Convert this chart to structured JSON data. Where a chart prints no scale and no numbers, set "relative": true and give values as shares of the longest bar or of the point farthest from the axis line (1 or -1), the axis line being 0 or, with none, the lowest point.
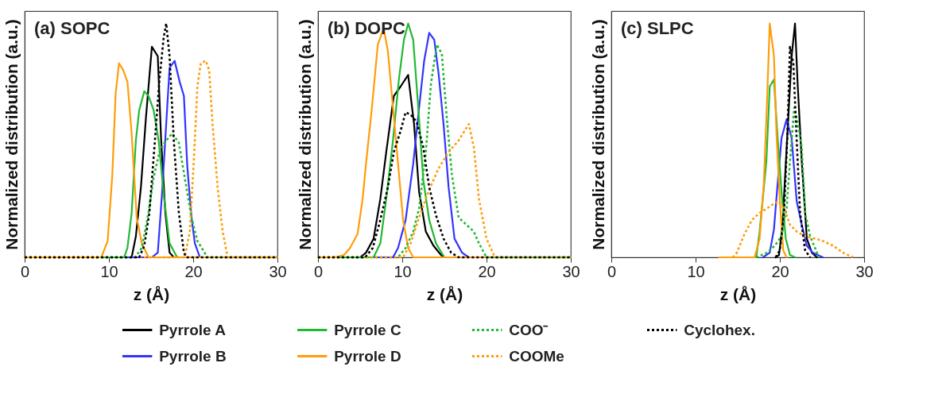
{
  "chart_data": [
    {
      "type": "line",
      "title": "(a) SOPC",
      "xlabel": "z (Å)",
      "ylabel": "Normalized distribution (a.u.)",
      "relative": true,
      "tick_labels": "x",
      "xlim": [
        0,
        30
      ],
      "xticks": [
        0,
        10,
        20,
        30
      ],
      "grid": false,
      "legend": "bottom",
      "series": [
        {
          "name": "Pyrrole A",
          "color": "#000000",
          "line_style": "solid",
          "x": [
            0,
            12.7,
            13.2,
            13.8,
            14.4,
            15.1,
            15.8,
            16.2,
            16.7,
            17.2,
            17.7,
            30
          ],
          "values": [
            0,
            0,
            0.09,
            0.3,
            0.6,
            0.9,
            0.86,
            0.5,
            0.19,
            0.02,
            0,
            0
          ]
        },
        {
          "name": "Pyrrole B",
          "color": "#3333ff",
          "line_style": "solid",
          "x": [
            0,
            15.1,
            15.8,
            16.3,
            16.8,
            17.2,
            17.8,
            18.4,
            18.9,
            19.3,
            19.8,
            20.2,
            20.8,
            30
          ],
          "values": [
            0,
            0,
            0.02,
            0.27,
            0.57,
            0.81,
            0.84,
            0.75,
            0.69,
            0.39,
            0.17,
            0.06,
            0,
            0
          ]
        },
        {
          "name": "Pyrrole C",
          "color": "#22b833",
          "line_style": "solid",
          "x": [
            0,
            11.8,
            12.2,
            12.7,
            13.2,
            13.6,
            14.2,
            14.7,
            15.3,
            15.9,
            16.5,
            17.2,
            18.1,
            30
          ],
          "values": [
            0,
            0,
            0.04,
            0.19,
            0.5,
            0.63,
            0.71,
            0.69,
            0.63,
            0.5,
            0.27,
            0.06,
            0,
            0
          ]
        },
        {
          "name": "Pyrrole D",
          "color": "#ff9d0a",
          "line_style": "solid",
          "x": [
            0,
            9.1,
            9.85,
            10.4,
            10.8,
            11.2,
            11.7,
            12.2,
            12.7,
            13.3,
            13.9,
            14.7,
            30
          ],
          "values": [
            0,
            0,
            0.07,
            0.35,
            0.7,
            0.83,
            0.8,
            0.75,
            0.53,
            0.17,
            0.06,
            0,
            0
          ]
        },
        {
          "name": "COO⁻",
          "color": "#22b833",
          "line_style": "dotted",
          "x": [
            0,
            13.1,
            13.9,
            14.7,
            15.3,
            16.0,
            16.6,
            17.5,
            18.3,
            19.0,
            19.8,
            20.5,
            21.7,
            30
          ],
          "values": [
            0,
            0,
            0.04,
            0.19,
            0.34,
            0.45,
            0.49,
            0.53,
            0.49,
            0.34,
            0.17,
            0.07,
            0,
            0
          ]
        },
        {
          "name": "COOMe",
          "color": "#ff9d0a",
          "line_style": "dotted",
          "x": [
            0,
            19.0,
            19.6,
            20.1,
            20.5,
            20.9,
            21.5,
            21.9,
            22.3,
            22.9,
            23.5,
            24.1,
            30
          ],
          "values": [
            0,
            0,
            0.11,
            0.43,
            0.73,
            0.83,
            0.84,
            0.8,
            0.57,
            0.3,
            0.11,
            0,
            0
          ]
        },
        {
          "name": "Cyclohex.",
          "color": "#000000",
          "line_style": "dotted",
          "x": [
            0,
            13.6,
            14.2,
            14.8,
            15.4,
            16.0,
            16.5,
            16.8,
            17.2,
            17.7,
            18.3,
            18.9,
            19.2,
            30
          ],
          "values": [
            0,
            0,
            0.05,
            0.19,
            0.47,
            0.76,
            0.94,
            1.0,
            0.86,
            0.5,
            0.19,
            0.02,
            0,
            0
          ]
        }
      ]
    },
    {
      "type": "line",
      "title": "(b) DOPC",
      "xlabel": "z (Å)",
      "ylabel": "Normalized distribution (a.u.)",
      "relative": true,
      "tick_labels": "x",
      "xlim": [
        0,
        30
      ],
      "xticks": [
        0,
        10,
        20,
        30
      ],
      "grid": false,
      "series": [
        {
          "color": "#000000",
          "line_style": "solid",
          "x": [
            0,
            5.0,
            5.7,
            6.6,
            7.4,
            8.1,
            9.0,
            9.8,
            10.7,
            11.4,
            12.0,
            12.8,
            13.7,
            14.6,
            15.0,
            30
          ],
          "values": [
            0,
            0,
            0.02,
            0.08,
            0.25,
            0.45,
            0.69,
            0.73,
            0.78,
            0.57,
            0.28,
            0.11,
            0.05,
            0.01,
            0,
            0
          ]
        },
        {
          "color": "#3333ff",
          "line_style": "solid",
          "x": [
            0,
            8.9,
            9.5,
            10.4,
            11.3,
            12.0,
            12.6,
            13.2,
            13.8,
            14.3,
            14.9,
            15.5,
            16.2,
            17.1,
            17.9,
            30
          ],
          "values": [
            0,
            0,
            0.04,
            0.16,
            0.4,
            0.64,
            0.84,
            0.96,
            0.93,
            0.79,
            0.57,
            0.3,
            0.08,
            0.02,
            0,
            0
          ]
        },
        {
          "color": "#22b833",
          "line_style": "solid",
          "x": [
            0,
            6.6,
            7.4,
            8.1,
            8.9,
            9.6,
            10.2,
            10.7,
            11.3,
            11.9,
            12.5,
            13.2,
            14.0,
            15.0,
            30
          ],
          "values": [
            0,
            0,
            0.06,
            0.25,
            0.5,
            0.76,
            0.93,
            1.0,
            0.93,
            0.64,
            0.33,
            0.16,
            0.06,
            0,
            0
          ]
        },
        {
          "color": "#ff9d0a",
          "line_style": "solid",
          "x": [
            0,
            2.0,
            3.1,
            3.8,
            4.7,
            5.3,
            5.7,
            6.4,
            7.1,
            7.8,
            8.3,
            8.9,
            9.5,
            10.1,
            10.7,
            11.3,
            30
          ],
          "values": [
            0,
            0,
            0.01,
            0.04,
            0.1,
            0.25,
            0.4,
            0.64,
            0.91,
            0.98,
            0.88,
            0.64,
            0.4,
            0.16,
            0.04,
            0,
            0
          ]
        },
        {
          "color": "#22b833",
          "line_style": "dotted",
          "x": [
            0,
            9.5,
            10.4,
            11.3,
            12.0,
            12.8,
            13.4,
            14.1,
            14.7,
            15.3,
            15.9,
            16.7,
            17.9,
            18.5,
            19.1,
            20.0,
            30
          ],
          "values": [
            0,
            0,
            0.04,
            0.11,
            0.21,
            0.45,
            0.74,
            0.91,
            0.87,
            0.59,
            0.35,
            0.17,
            0.13,
            0.11,
            0.06,
            0,
            0
          ]
        },
        {
          "color": "#ff9d0a",
          "line_style": "dotted",
          "x": [
            0,
            10.1,
            11.0,
            11.9,
            13.1,
            14.3,
            15.5,
            16.7,
            17.9,
            18.5,
            19.1,
            20.0,
            21.0,
            30
          ],
          "values": [
            0,
            0,
            0.06,
            0.16,
            0.28,
            0.38,
            0.45,
            0.5,
            0.57,
            0.47,
            0.25,
            0.08,
            0,
            0
          ]
        },
        {
          "color": "#000000",
          "line_style": "dotted",
          "x": [
            0,
            5.6,
            6.5,
            7.4,
            8.3,
            9.0,
            9.8,
            10.4,
            11.0,
            11.7,
            12.5,
            13.2,
            14.0,
            14.9,
            15.8,
            16.7,
            30
          ],
          "values": [
            0,
            0,
            0.04,
            0.16,
            0.3,
            0.45,
            0.54,
            0.62,
            0.61,
            0.58,
            0.47,
            0.3,
            0.18,
            0.08,
            0.02,
            0,
            0
          ]
        }
      ]
    },
    {
      "type": "line",
      "title": "(c) SLPC",
      "xlabel": "z (Å)",
      "ylabel": "Normalized distribution (a.u.)",
      "relative": true,
      "tick_labels": "x",
      "xlim": [
        0,
        30
      ],
      "xticks": [
        0,
        10,
        20,
        30
      ],
      "grid": false,
      "series": [
        {
          "color": "#000000",
          "line_style": "solid",
          "x": [
            19.5,
            19.9,
            20.3,
            20.9,
            21.4,
            21.8,
            22.1,
            22.6,
            23.2,
            23.8,
            24.4
          ],
          "values": [
            0,
            0.01,
            0.13,
            0.53,
            0.86,
            1.0,
            0.75,
            0.41,
            0.08,
            0.02,
            0
          ]
        },
        {
          "color": "#3333ff",
          "line_style": "solid",
          "x": [
            18.0,
            18.8,
            19.3,
            19.7,
            20.2,
            20.8,
            21.4,
            22.0,
            22.6,
            23.2,
            23.9,
            25.1
          ],
          "values": [
            0,
            0.02,
            0.12,
            0.3,
            0.51,
            0.59,
            0.51,
            0.24,
            0.14,
            0.05,
            0.02,
            0
          ]
        },
        {
          "color": "#22b833",
          "line_style": "solid",
          "x": [
            15.8,
            17.2,
            17.6,
            18.4,
            18.8,
            19.3,
            19.7,
            20.2,
            20.7,
            21.2,
            21.8
          ],
          "values": [
            0,
            0,
            0.11,
            0.41,
            0.73,
            0.76,
            0.53,
            0.28,
            0.08,
            0.01,
            0
          ]
        },
        {
          "color": "#ff9d0a",
          "line_style": "solid",
          "x": [
            12.8,
            17.0,
            17.6,
            18.1,
            18.5,
            18.8,
            19.3,
            19.6,
            20.0,
            20.4,
            20.8
          ],
          "values": [
            0,
            0,
            0.08,
            0.32,
            0.69,
            1.0,
            0.86,
            0.53,
            0.24,
            0.03,
            0
          ]
        },
        {
          "color": "#22b833",
          "line_style": "dotted",
          "x": [
            17.2,
            18.5,
            19.4,
            20.2,
            20.8,
            21.2,
            21.7,
            22.1,
            22.6,
            23.0,
            23.6,
            24.4,
            24.7
          ],
          "values": [
            0,
            0.02,
            0.05,
            0.09,
            0.21,
            0.41,
            0.64,
            0.58,
            0.47,
            0.19,
            0.09,
            0.02,
            0
          ]
        },
        {
          "color": "#ff9d0a",
          "line_style": "dotted",
          "x": [
            14.4,
            14.9,
            15.8,
            16.7,
            17.6,
            18.5,
            19.3,
            19.9,
            20.6,
            21.2,
            22.0,
            23.0,
            24.2,
            25.1,
            26.3,
            27.5,
            28.7
          ],
          "values": [
            0,
            0.02,
            0.1,
            0.16,
            0.19,
            0.21,
            0.23,
            0.24,
            0.2,
            0.14,
            0.11,
            0.09,
            0.08,
            0.07,
            0.05,
            0.02,
            0
          ]
        },
        {
          "color": "#000000",
          "line_style": "dotted",
          "x": [
            19.5,
            20.0,
            20.5,
            20.9,
            21.2,
            21.6,
            22.0,
            22.4,
            23.0,
            23.6
          ],
          "values": [
            0,
            0.03,
            0.19,
            0.53,
            0.9,
            0.83,
            0.5,
            0.19,
            0.03,
            0
          ]
        }
      ]
    }
  ]
}
